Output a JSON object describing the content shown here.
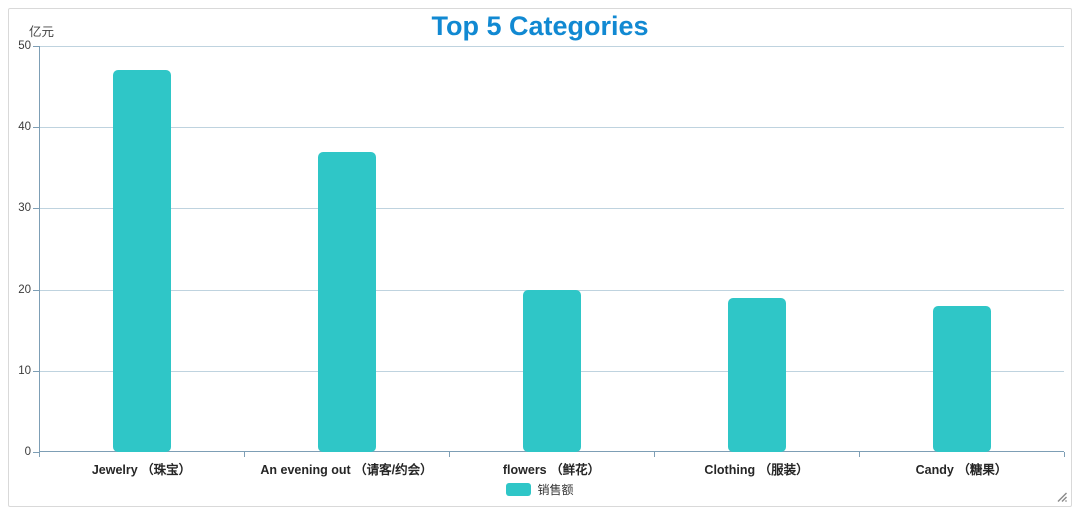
{
  "title": "Top 5 Categories",
  "axis_unit_label": "亿元",
  "colors": {
    "title": "#1189D2",
    "bar": "#2FC6C7",
    "gridline": "#BFD3DF",
    "axis": "#7D9EB5",
    "panel_border": "#D9D9D9",
    "grip": "#8A8A8A"
  },
  "chart_data": {
    "type": "bar",
    "title": "Top 5 Categories",
    "xlabel": "",
    "ylabel": "亿元",
    "categories": [
      "Jewelry （珠宝）",
      "An evening out （请客/约会）",
      "flowers （鲜花）",
      "Clothing （服装）",
      "Candy （糖果）"
    ],
    "series": [
      {
        "name": "销售额",
        "values": [
          47,
          37,
          20,
          19,
          18
        ]
      }
    ],
    "ylim": [
      0,
      50
    ],
    "ytick_step": 10,
    "grid": true,
    "legend_position": "bottom"
  },
  "legend": {
    "items": [
      {
        "label": "销售额"
      }
    ]
  }
}
